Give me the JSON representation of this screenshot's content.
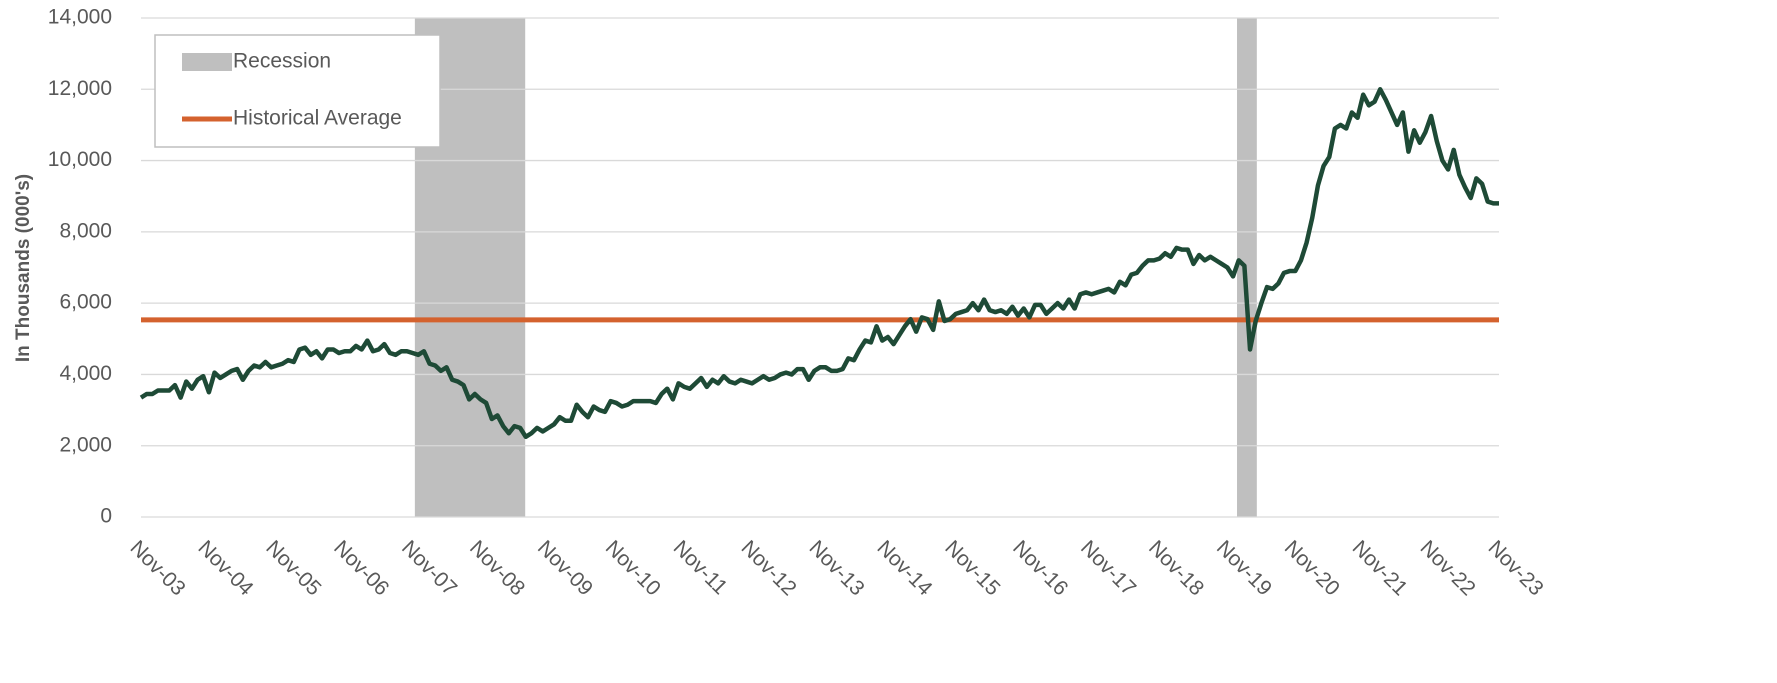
{
  "chart_data": {
    "type": "line",
    "ylabel": "In Thousands (000's)",
    "ylim": [
      0,
      14000
    ],
    "yticks": [
      0,
      {
        "value": 2000,
        "label": "2,000"
      },
      {
        "value": 4000,
        "label": "4,000"
      },
      {
        "value": 6000,
        "label": "6,000"
      },
      {
        "value": 8000,
        "label": "8,000"
      },
      {
        "value": 10000,
        "label": "10,000"
      },
      {
        "value": 12000,
        "label": "12,000"
      },
      {
        "value": 14000,
        "label": "14,000"
      }
    ],
    "grid": true,
    "legend": "top-left",
    "color": "#1e4a36",
    "recession": {
      "name": "Recession",
      "color": "#bfbfbf",
      "spans": [
        [
          48.4,
          67.9
        ],
        [
          193.7,
          197.2
        ]
      ]
    },
    "average": {
      "name": "Historical Average",
      "color": "#d4622e",
      "value": 5530
    },
    "categories": [
      "Nov-03",
      null,
      null,
      null,
      null,
      null,
      null,
      null,
      null,
      null,
      null,
      null,
      "Nov-04",
      null,
      null,
      null,
      null,
      null,
      null,
      null,
      null,
      null,
      null,
      null,
      "Nov-05",
      null,
      null,
      null,
      null,
      null,
      null,
      null,
      null,
      null,
      null,
      null,
      "Nov-06",
      null,
      null,
      null,
      null,
      null,
      null,
      null,
      null,
      null,
      null,
      null,
      "Nov-07",
      null,
      null,
      null,
      null,
      null,
      null,
      null,
      null,
      null,
      null,
      null,
      "Nov-08",
      null,
      null,
      null,
      null,
      null,
      null,
      null,
      null,
      null,
      null,
      null,
      "Nov-09",
      null,
      null,
      null,
      null,
      null,
      null,
      null,
      null,
      null,
      null,
      null,
      "Nov-10",
      null,
      null,
      null,
      null,
      null,
      null,
      null,
      null,
      null,
      null,
      null,
      "Nov-11",
      null,
      null,
      null,
      null,
      null,
      null,
      null,
      null,
      null,
      null,
      null,
      "Nov-12",
      null,
      null,
      null,
      null,
      null,
      null,
      null,
      null,
      null,
      null,
      null,
      "Nov-13",
      null,
      null,
      null,
      null,
      null,
      null,
      null,
      null,
      null,
      null,
      null,
      "Nov-14",
      null,
      null,
      null,
      null,
      null,
      null,
      null,
      null,
      null,
      null,
      null,
      "Nov-15",
      null,
      null,
      null,
      null,
      null,
      null,
      null,
      null,
      null,
      null,
      null,
      "Nov-16",
      null,
      null,
      null,
      null,
      null,
      null,
      null,
      null,
      null,
      null,
      null,
      "Nov-17",
      null,
      null,
      null,
      null,
      null,
      null,
      null,
      null,
      null,
      null,
      null,
      "Nov-18",
      null,
      null,
      null,
      null,
      null,
      null,
      null,
      null,
      null,
      null,
      null,
      "Nov-19",
      null,
      null,
      null,
      null,
      null,
      null,
      null,
      null,
      null,
      null,
      null,
      "Nov-20",
      null,
      null,
      null,
      null,
      null,
      null,
      null,
      null,
      null,
      null,
      null,
      "Nov-21",
      null,
      null,
      null,
      null,
      null,
      null,
      null,
      null,
      null,
      null,
      null,
      "Nov-22",
      null,
      null,
      null,
      null,
      null,
      null,
      null,
      null,
      null,
      null,
      null,
      "Nov-23"
    ],
    "values": [
      3350,
      3450,
      3450,
      3550,
      3550,
      3550,
      3700,
      3350,
      3800,
      3600,
      3850,
      3950,
      3500,
      4050,
      3900,
      4000,
      4100,
      4150,
      3850,
      4100,
      4250,
      4200,
      4350,
      4200,
      4250,
      4300,
      4400,
      4350,
      4700,
      4750,
      4550,
      4650,
      4450,
      4700,
      4700,
      4600,
      4650,
      4650,
      4800,
      4700,
      4950,
      4650,
      4700,
      4850,
      4600,
      4550,
      4650,
      4650,
      4600,
      4550,
      4650,
      4300,
      4250,
      4100,
      4200,
      3850,
      3800,
      3700,
      3300,
      3450,
      3300,
      3200,
      2750,
      2850,
      2550,
      2350,
      2550,
      2500,
      2250,
      2350,
      2500,
      2400,
      2500,
      2600,
      2800,
      2700,
      2700,
      3150,
      2950,
      2800,
      3100,
      3000,
      2950,
      3250,
      3200,
      3100,
      3150,
      3250,
      3250,
      3250,
      3250,
      3200,
      3450,
      3600,
      3300,
      3750,
      3650,
      3600,
      3750,
      3900,
      3650,
      3850,
      3750,
      3950,
      3800,
      3750,
      3850,
      3800,
      3750,
      3850,
      3950,
      3850,
      3900,
      4000,
      4050,
      4000,
      4150,
      4150,
      3850,
      4100,
      4200,
      4200,
      4100,
      4100,
      4150,
      4450,
      4400,
      4700,
      4950,
      4900,
      5350,
      4950,
      5050,
      4850,
      5100,
      5350,
      5550,
      5200,
      5600,
      5550,
      5250,
      6050,
      5500,
      5550,
      5700,
      5750,
      5800,
      6000,
      5800,
      6100,
      5800,
      5750,
      5800,
      5700,
      5900,
      5650,
      5850,
      5600,
      5950,
      5950,
      5700,
      5850,
      6000,
      5850,
      6100,
      5850,
      6250,
      6300,
      6250,
      6300,
      6350,
      6400,
      6300,
      6600,
      6500,
      6800,
      6850,
      7050,
      7200,
      7200,
      7250,
      7400,
      7300,
      7550,
      7500,
      7500,
      7100,
      7350,
      7200,
      7300,
      7200,
      7100,
      7000,
      6750,
      7200,
      7050,
      4700,
      5500,
      6000,
      6450,
      6400,
      6550,
      6850,
      6900,
      6900,
      7200,
      7700,
      8400,
      9300,
      9850,
      10100,
      10900,
      11000,
      10900,
      11350,
      11200,
      11850,
      11550,
      11650,
      12000,
      11700,
      11350,
      11000,
      11350,
      10250,
      10850,
      10500,
      10800,
      11250,
      10550,
      10000,
      9750,
      10300,
      9600,
      9250,
      8950,
      9500,
      9350,
      8850,
      8800,
      8800
    ]
  }
}
